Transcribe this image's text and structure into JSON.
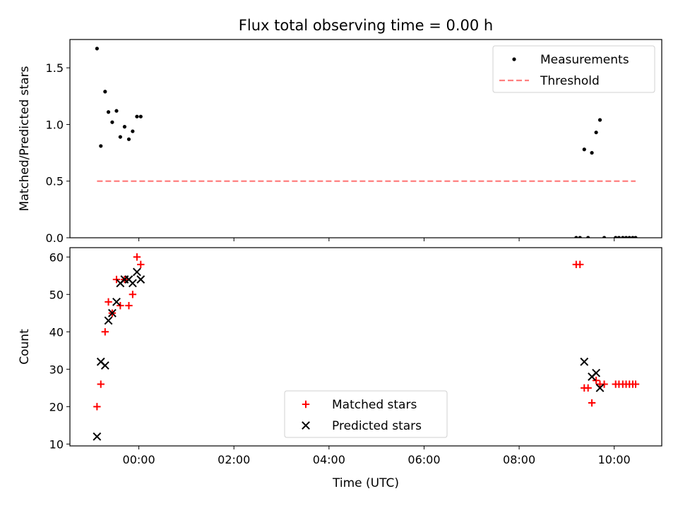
{
  "chart_data": {
    "title": "Flux total observing time = 0.00 h",
    "xlabel": "Time (UTC)",
    "x_units": "hours (UTC)",
    "xlim": [
      -1.45,
      11.0
    ],
    "x_ticks": [
      {
        "value": 0,
        "label": "00:00"
      },
      {
        "value": 2,
        "label": "02:00"
      },
      {
        "value": 4,
        "label": "04:00"
      },
      {
        "value": 6,
        "label": "06:00"
      },
      {
        "value": 8,
        "label": "08:00"
      },
      {
        "value": 10,
        "label": "10:00"
      }
    ],
    "panels": [
      {
        "type": "scatter",
        "ylabel": "Matched/Predicted stars",
        "ylim": [
          0,
          1.75
        ],
        "yticks": [
          {
            "value": 0,
            "label": "0.0"
          },
          {
            "value": 0.5,
            "label": "0.5"
          },
          {
            "value": 1.0,
            "label": "1.0"
          },
          {
            "value": 1.5,
            "label": "1.5"
          }
        ],
        "grid": false,
        "legend_position": "top-right",
        "series": [
          {
            "name": "Measurements",
            "marker": "dot",
            "color": "#000000",
            "points": [
              [
                -0.88,
                1.67
              ],
              [
                -0.8,
                0.81
              ],
              [
                -0.71,
                1.29
              ],
              [
                -0.64,
                1.11
              ],
              [
                -0.56,
                1.02
              ],
              [
                -0.47,
                1.12
              ],
              [
                -0.39,
                0.89
              ],
              [
                -0.3,
                0.98
              ],
              [
                -0.21,
                0.87
              ],
              [
                -0.13,
                0.94
              ],
              [
                -0.04,
                1.07
              ],
              [
                0.04,
                1.07
              ],
              [
                9.2,
                0.0
              ],
              [
                9.28,
                0.0
              ],
              [
                9.37,
                0.78
              ],
              [
                9.45,
                0.0
              ],
              [
                9.53,
                0.75
              ],
              [
                9.62,
                0.93
              ],
              [
                9.7,
                1.04
              ],
              [
                9.79,
                0.0
              ],
              [
                10.03,
                0.0
              ],
              [
                10.1,
                0.0
              ],
              [
                10.18,
                0.0
              ],
              [
                10.25,
                0.0
              ],
              [
                10.32,
                0.0
              ],
              [
                10.39,
                0.0
              ],
              [
                10.45,
                0.0
              ]
            ]
          },
          {
            "name": "Threshold",
            "style": "dashed",
            "color": "#ff7f7f",
            "x": [
              -0.88,
              10.45
            ],
            "y": [
              0.5,
              0.5
            ]
          }
        ]
      },
      {
        "type": "scatter",
        "ylabel": "Count",
        "ylim": [
          9.5,
          62.5
        ],
        "yticks": [
          {
            "value": 10,
            "label": "10"
          },
          {
            "value": 20,
            "label": "20"
          },
          {
            "value": 30,
            "label": "30"
          },
          {
            "value": 40,
            "label": "40"
          },
          {
            "value": 50,
            "label": "50"
          },
          {
            "value": 60,
            "label": "60"
          }
        ],
        "grid": false,
        "legend_position": "bottom-center",
        "series": [
          {
            "name": "Matched stars",
            "marker": "plus",
            "color": "#ff0000",
            "points": [
              [
                -0.88,
                20
              ],
              [
                -0.8,
                26
              ],
              [
                -0.71,
                40
              ],
              [
                -0.64,
                48
              ],
              [
                -0.56,
                45
              ],
              [
                -0.47,
                54
              ],
              [
                -0.39,
                47
              ],
              [
                -0.3,
                54
              ],
              [
                -0.21,
                47
              ],
              [
                -0.13,
                50
              ],
              [
                -0.04,
                60
              ],
              [
                0.04,
                58
              ],
              [
                9.2,
                58
              ],
              [
                9.28,
                58
              ],
              [
                9.37,
                25
              ],
              [
                9.45,
                25
              ],
              [
                9.53,
                21
              ],
              [
                9.62,
                27
              ],
              [
                9.7,
                26
              ],
              [
                9.79,
                26
              ],
              [
                10.03,
                26
              ],
              [
                10.1,
                26
              ],
              [
                10.18,
                26
              ],
              [
                10.25,
                26
              ],
              [
                10.32,
                26
              ],
              [
                10.39,
                26
              ],
              [
                10.45,
                26
              ]
            ]
          },
          {
            "name": "Predicted stars",
            "marker": "x",
            "color": "#000000",
            "points": [
              [
                -0.88,
                12
              ],
              [
                -0.8,
                32
              ],
              [
                -0.71,
                31
              ],
              [
                -0.64,
                43
              ],
              [
                -0.56,
                45
              ],
              [
                -0.47,
                48
              ],
              [
                -0.39,
                53
              ],
              [
                -0.3,
                54
              ],
              [
                -0.21,
                54
              ],
              [
                -0.13,
                53
              ],
              [
                -0.04,
                56
              ],
              [
                0.04,
                54
              ],
              [
                9.37,
                32
              ],
              [
                9.53,
                28
              ],
              [
                9.62,
                29
              ],
              [
                9.7,
                25
              ]
            ]
          }
        ]
      }
    ]
  }
}
